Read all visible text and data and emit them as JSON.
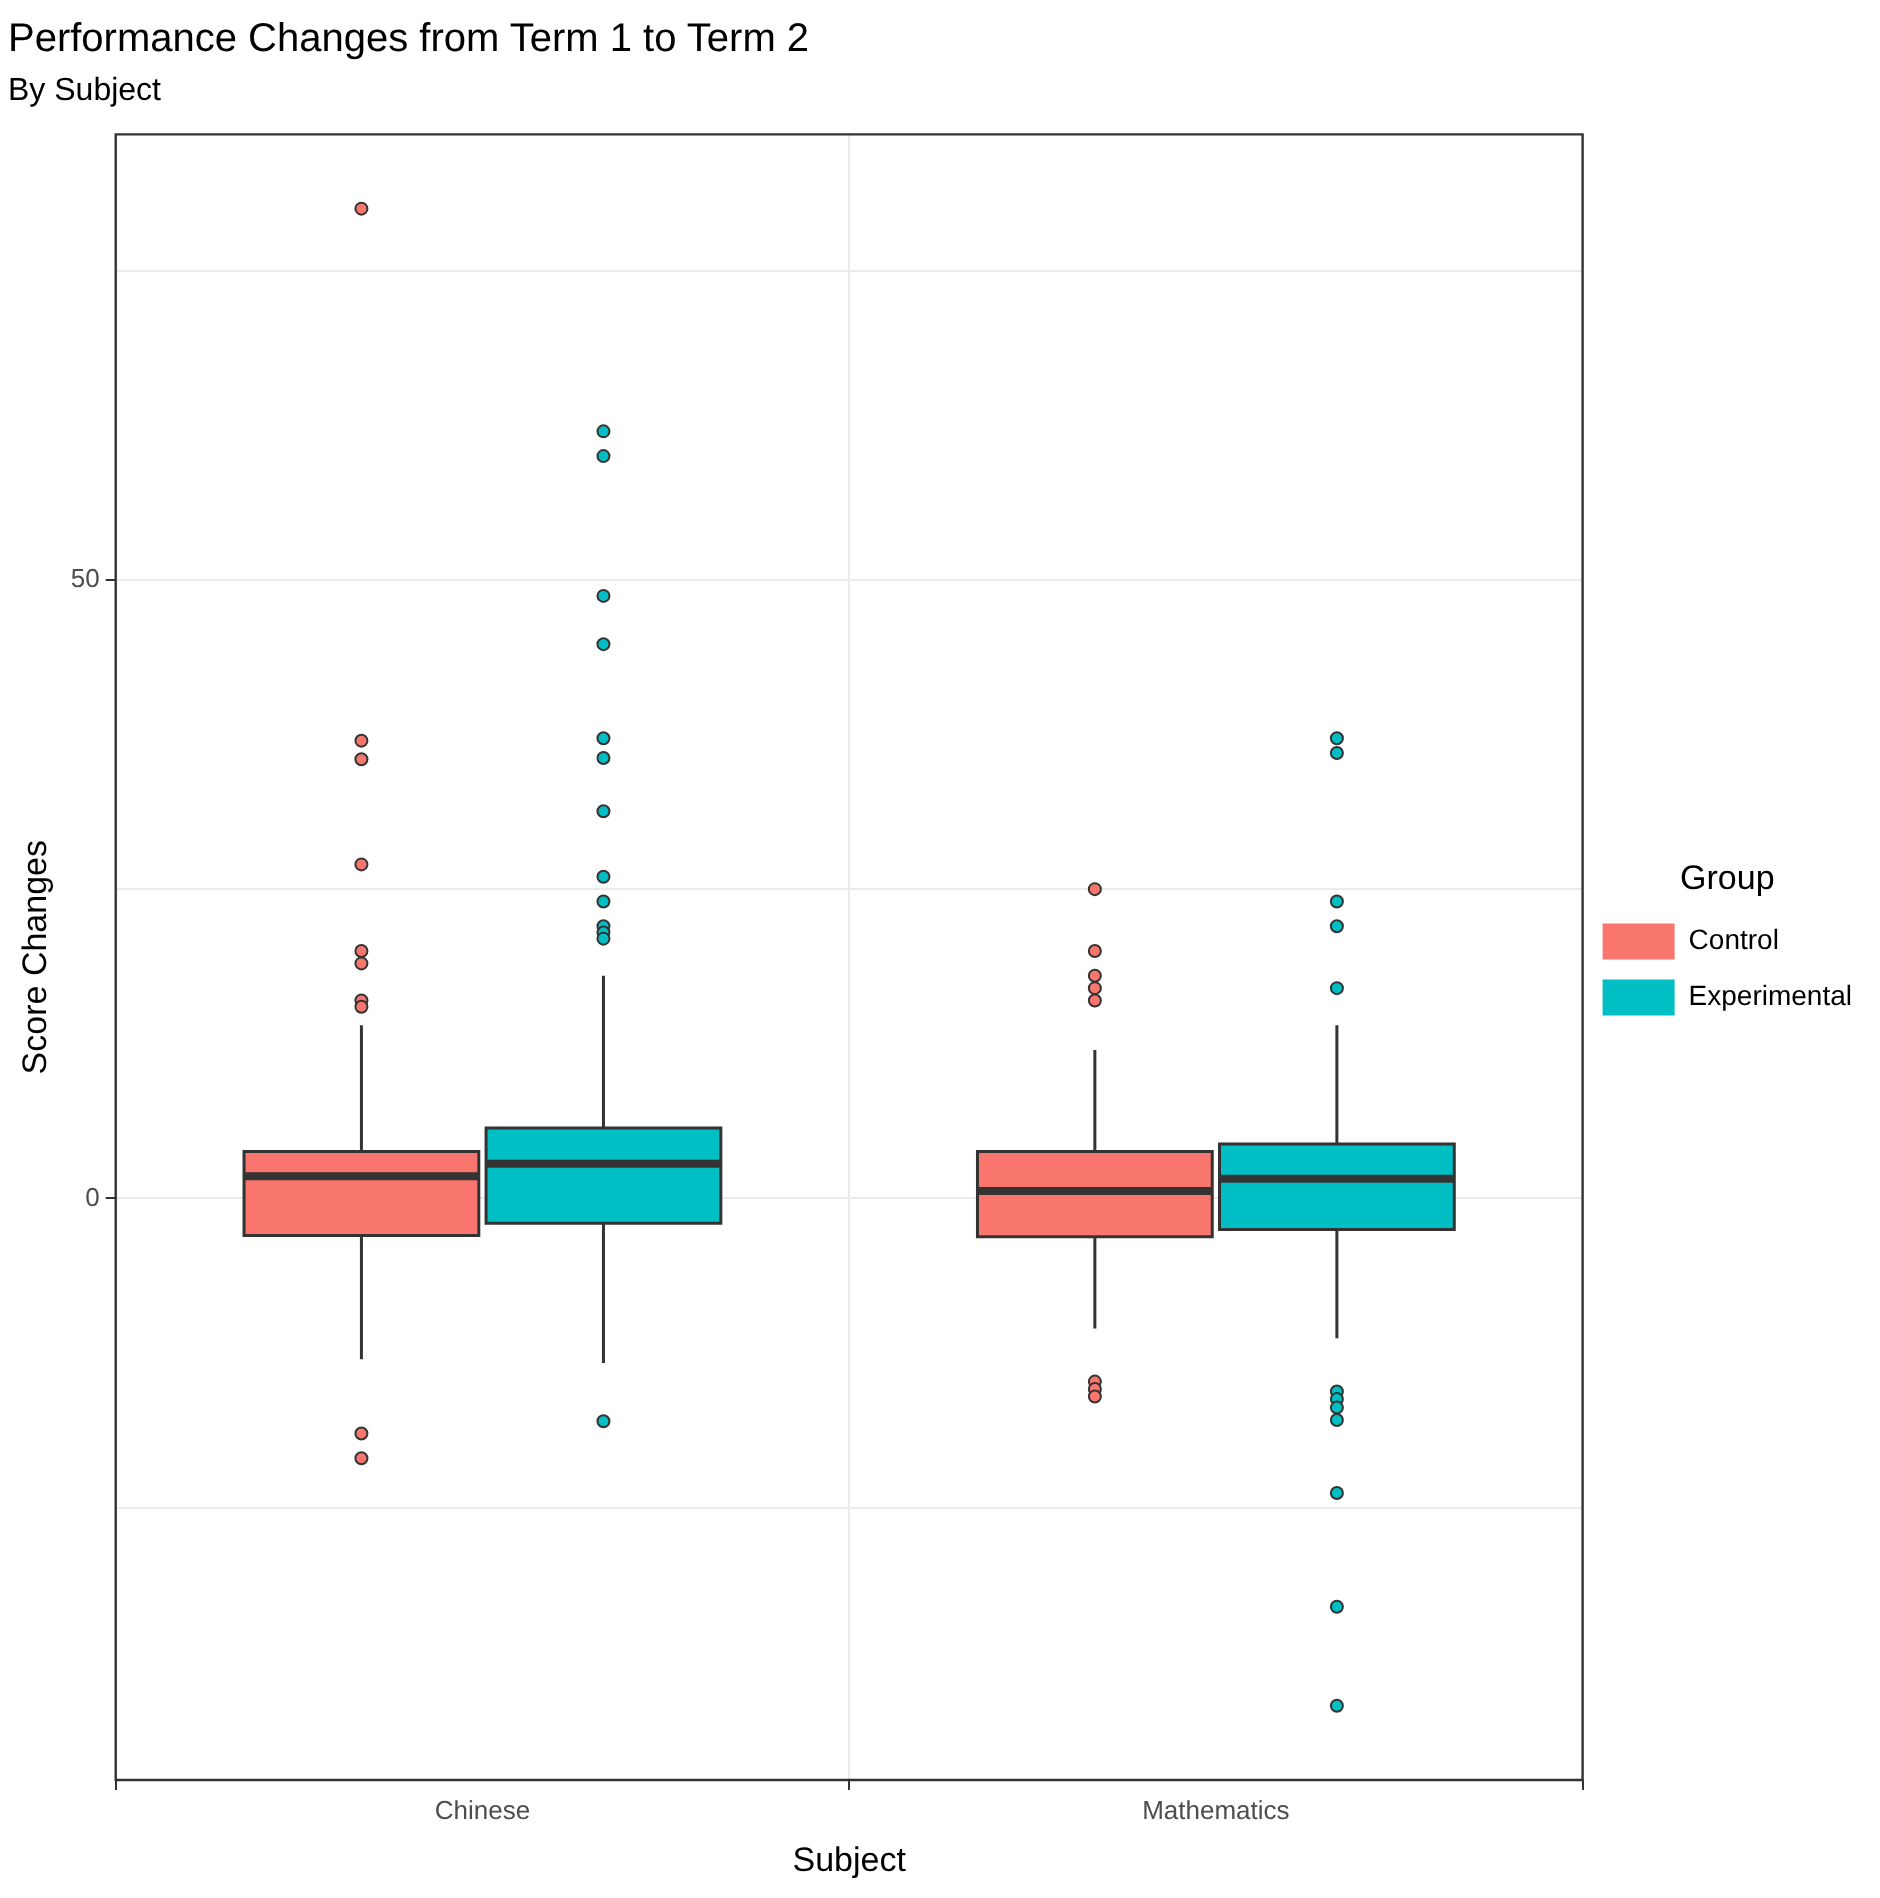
{
  "chart_data": {
    "type": "box",
    "title": "Performance Changes from Term 1 to Term 2",
    "subtitle": "By Subject",
    "xlabel": "Subject",
    "ylabel": "Score Changes",
    "legend_title": "Group",
    "categories": [
      "Chinese",
      "Mathematics"
    ],
    "series": [
      {
        "name": "Control",
        "color": "#f8766d",
        "boxes": [
          {
            "low": -13,
            "q1": -3,
            "median": 1.8,
            "q3": 3.8,
            "high": 14,
            "outliers": [
              80,
              37,
              35.5,
              27,
              20,
              19,
              16,
              15.5,
              -19,
              -21
            ]
          },
          {
            "low": -10.5,
            "q1": -3.1,
            "median": 0.6,
            "q3": 3.8,
            "high": 12,
            "outliers": [
              25,
              20,
              18,
              17,
              16,
              -14.8,
              -15.4,
              -16
            ]
          }
        ]
      },
      {
        "name": "Experimental",
        "color": "#00bfc4",
        "boxes": [
          {
            "low": -13.3,
            "q1": -2,
            "median": 2.8,
            "q3": 5.7,
            "high": 18,
            "outliers": [
              62,
              60,
              48.7,
              44.8,
              37.2,
              35.6,
              31.3,
              26,
              24,
              22,
              21.5,
              21,
              -18
            ]
          },
          {
            "low": -11.3,
            "q1": -2.5,
            "median": 1.6,
            "q3": 4.4,
            "high": 14,
            "outliers": [
              37.2,
              36,
              24,
              22,
              17,
              -15.6,
              -16.2,
              -16.9,
              -17.9,
              -23.8,
              -33,
              -41
            ]
          }
        ]
      }
    ],
    "ylim": [
      -47,
      86
    ],
    "yticks": [
      {
        "value": -25,
        "label": null
      },
      0,
      {
        "value": 25,
        "label": null
      },
      50,
      {
        "value": 75,
        "label": null
      }
    ],
    "grid": true,
    "legend": "right"
  }
}
